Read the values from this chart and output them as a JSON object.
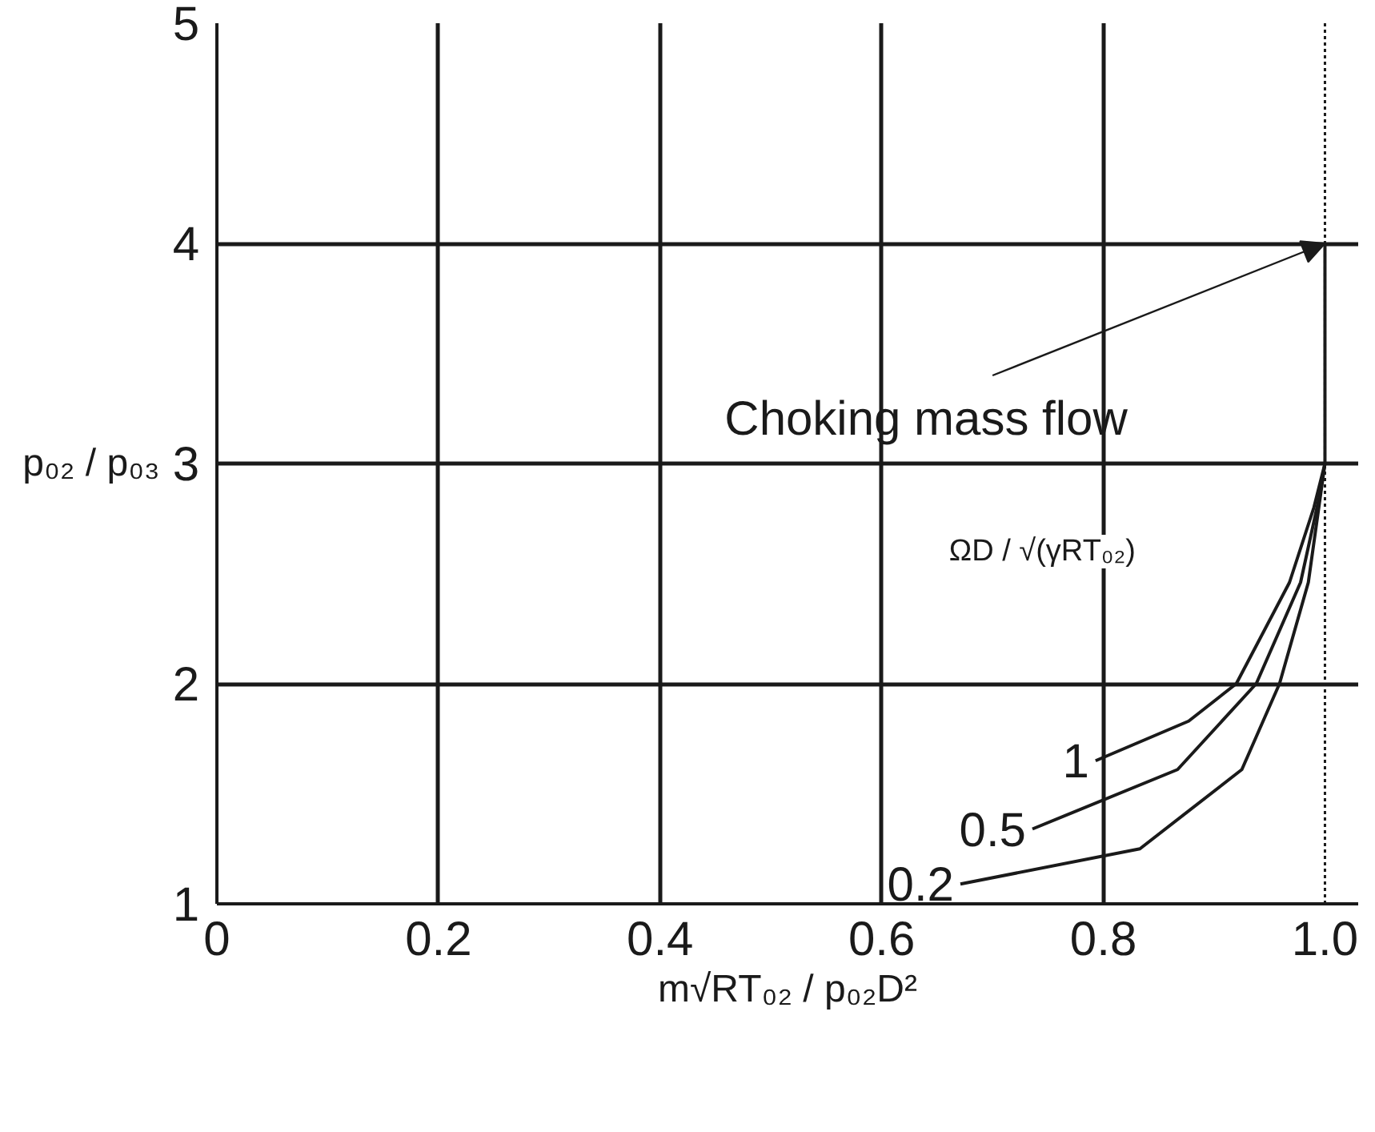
{
  "chart_data": {
    "type": "line",
    "xlabel": "m√RT₀₂ / p₀₂D²",
    "ylabel": "p₀₂ / p₀₃",
    "legend_title": "ΩD / √(γRT₀₂)",
    "xlim": [
      0,
      1.03
    ],
    "ylim": [
      1,
      5
    ],
    "xticks": [
      0,
      0.2,
      0.4,
      0.6,
      0.8,
      {
        "value": 1,
        "label": "1.0"
      }
    ],
    "yticks": [
      1,
      2,
      3,
      4,
      5
    ],
    "grid": true,
    "marker": "none",
    "line_style": "solid",
    "series": [
      {
        "name": "1",
        "color": "#1a1a1a",
        "x": [
          0.793,
          0.877,
          0.92,
          0.968,
          0.99,
          1.0,
          1.0
        ],
        "values": [
          1.65,
          1.83,
          2.0,
          2.46,
          2.8,
          3.0,
          4.0
        ]
      },
      {
        "name": "0.5",
        "color": "#1a1a1a",
        "x": [
          0.736,
          0.867,
          0.938,
          0.978,
          0.995,
          1.0
        ],
        "values": [
          1.34,
          1.61,
          2.0,
          2.46,
          2.85,
          3.0
        ]
      },
      {
        "name": "0.2",
        "color": "#1a1a1a",
        "x": [
          0.671,
          0.833,
          0.925,
          0.959,
          0.985,
          1.0
        ],
        "values": [
          1.09,
          1.25,
          1.61,
          2.0,
          2.46,
          3.0
        ]
      }
    ],
    "ref_lines": [
      {
        "axis": "x",
        "value": 1.0,
        "line_style": "dotted",
        "color": "#1a1a1a"
      }
    ],
    "annotations": [
      {
        "text": "Choking mass flow",
        "x": 1.0,
        "y": 4.0
      }
    ]
  }
}
